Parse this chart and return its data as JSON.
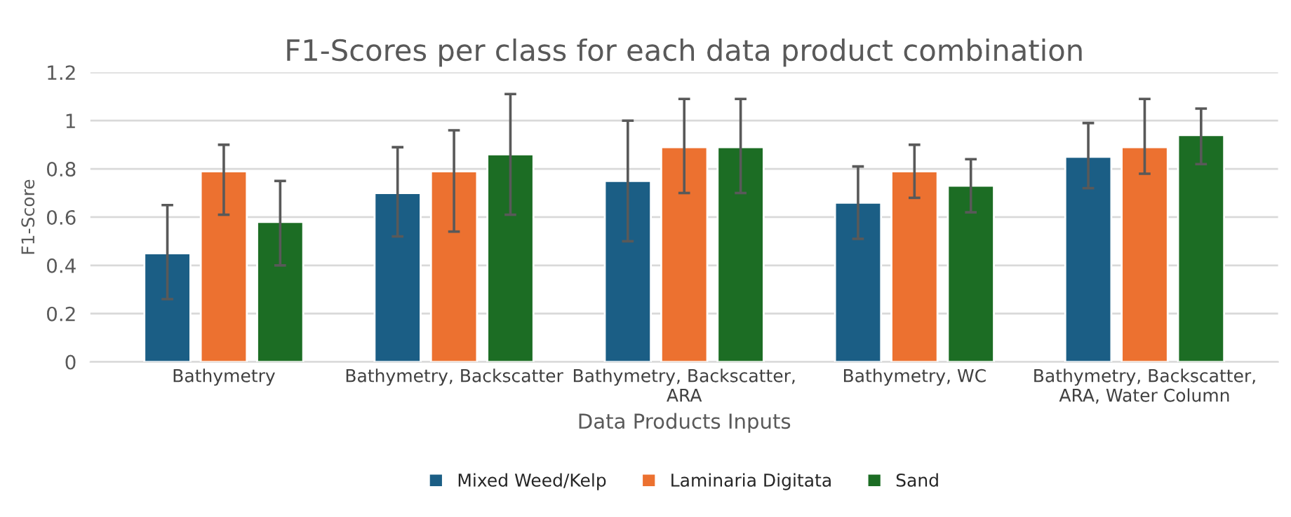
{
  "chart_data": {
    "type": "bar",
    "title": "F1-Scores per class for each data product combination",
    "xlabel": "Data Products Inputs",
    "ylabel": "F1-Score",
    "categories": [
      "Bathymetry",
      "Bathymetry, Backscatter",
      "Bathymetry, Backscatter,\nARA",
      "Bathymetry, WC",
      "Bathymetry, Backscatter,\nARA, Water Column"
    ],
    "series": [
      {
        "name": "Mixed Weed/Kelp",
        "color": "#1b5e85",
        "values": [
          0.45,
          0.7,
          0.75,
          0.66,
          0.85
        ],
        "errors": [
          [
            0.26,
            0.65
          ],
          [
            0.52,
            0.89
          ],
          [
            0.5,
            1.0
          ],
          [
            0.51,
            0.81
          ],
          [
            0.72,
            0.99
          ]
        ]
      },
      {
        "name": "Laminaria Digitata",
        "color": "#ec7130",
        "values": [
          0.79,
          0.79,
          0.89,
          0.79,
          0.89
        ],
        "errors": [
          [
            0.61,
            0.9
          ],
          [
            0.54,
            0.96
          ],
          [
            0.7,
            1.09
          ],
          [
            0.68,
            0.9
          ],
          [
            0.78,
            1.09
          ]
        ]
      },
      {
        "name": "Sand",
        "color": "#1c6d24",
        "values": [
          0.58,
          0.86,
          0.89,
          0.73,
          0.94
        ],
        "errors": [
          [
            0.4,
            0.75
          ],
          [
            0.61,
            1.11
          ],
          [
            0.7,
            1.09
          ],
          [
            0.62,
            0.84
          ],
          [
            0.82,
            1.05
          ]
        ]
      }
    ],
    "ylim": [
      0,
      1.2
    ],
    "yticks": [
      0,
      0.2,
      0.4,
      0.6,
      0.8,
      1,
      1.2
    ],
    "grid": "y",
    "legend": "bottom"
  }
}
